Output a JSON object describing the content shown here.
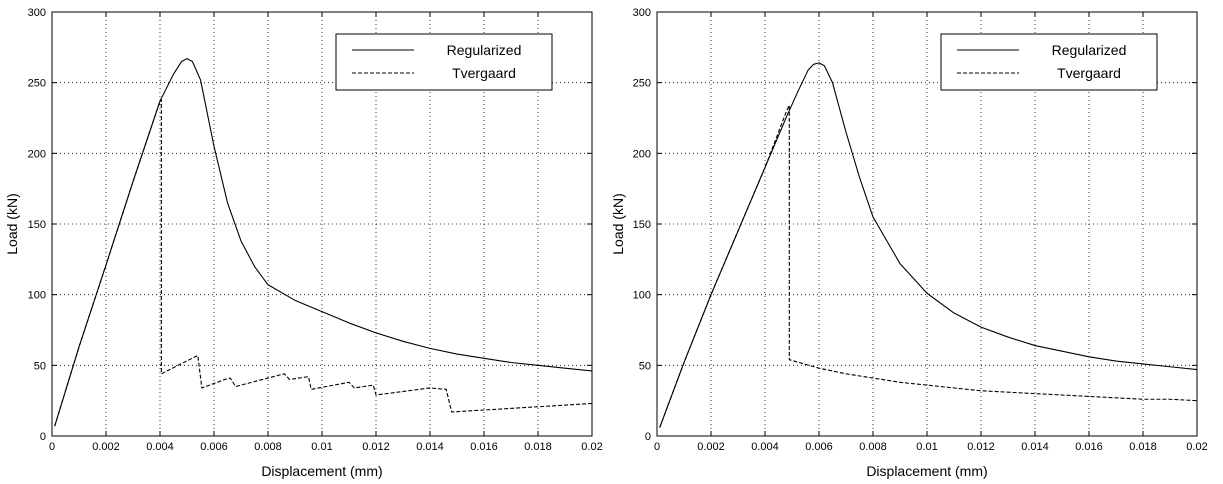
{
  "chart_data": [
    {
      "type": "line",
      "title": "",
      "xlabel": "Displacement (mm)",
      "ylabel": "Load (kN)",
      "xlim": [
        0,
        0.02
      ],
      "ylim": [
        0,
        300
      ],
      "grid": true,
      "legend_position": "top-right",
      "xticks": [
        "0",
        "0.002",
        "0.004",
        "0.006",
        "0.008",
        "0.01",
        "0.012",
        "0.014",
        "0.016",
        "0.018",
        "0.02"
      ],
      "yticks": [
        "0",
        "50",
        "100",
        "150",
        "200",
        "250",
        "300"
      ],
      "series": [
        {
          "name": "Regularized",
          "style": "solid",
          "x": [
            0.0001,
            0.001,
            0.002,
            0.003,
            0.004,
            0.0045,
            0.0048,
            0.005,
            0.0052,
            0.0055,
            0.006,
            0.0065,
            0.007,
            0.0075,
            0.008,
            0.009,
            0.01,
            0.011,
            0.012,
            0.013,
            0.014,
            0.015,
            0.016,
            0.017,
            0.018,
            0.019,
            0.02
          ],
          "y": [
            7,
            63,
            121,
            180,
            237,
            256,
            265,
            267,
            265,
            252,
            205,
            165,
            138,
            120,
            107,
            96,
            88,
            80,
            73,
            67,
            62,
            58,
            55,
            52,
            50,
            48,
            46
          ]
        },
        {
          "name": "Tvergaard",
          "style": "dashed",
          "x": [
            0.0001,
            0.001,
            0.002,
            0.003,
            0.004,
            0.00405,
            0.00405,
            0.0054,
            0.00555,
            0.0064,
            0.0066,
            0.0068,
            0.0086,
            0.0088,
            0.0095,
            0.0096,
            0.011,
            0.0112,
            0.0119,
            0.012,
            0.014,
            0.0146,
            0.0148,
            0.02
          ],
          "y": [
            7,
            63,
            121,
            180,
            237,
            238,
            44,
            57,
            34,
            40,
            41,
            35,
            44,
            40,
            42,
            33,
            38,
            34,
            36,
            29,
            34,
            33,
            17,
            23
          ]
        }
      ]
    },
    {
      "type": "line",
      "title": "",
      "xlabel": "Displacement (mm)",
      "ylabel": "Load (kN)",
      "xlim": [
        0,
        0.02
      ],
      "ylim": [
        0,
        300
      ],
      "grid": true,
      "legend_position": "top-right",
      "xticks": [
        "0",
        "0.002",
        "0.004",
        "0.006",
        "0.008",
        "0.01",
        "0.012",
        "0.014",
        "0.016",
        "0.018",
        "0.02"
      ],
      "yticks": [
        "0",
        "50",
        "100",
        "150",
        "200",
        "250",
        "300"
      ],
      "series": [
        {
          "name": "Regularized",
          "style": "solid",
          "x": [
            0.0001,
            0.001,
            0.002,
            0.003,
            0.004,
            0.0048,
            0.0052,
            0.0056,
            0.0058,
            0.006,
            0.0062,
            0.0065,
            0.007,
            0.0075,
            0.008,
            0.009,
            0.01,
            0.011,
            0.012,
            0.013,
            0.014,
            0.015,
            0.016,
            0.017,
            0.018,
            0.019,
            0.02
          ],
          "y": [
            6,
            52,
            100,
            145,
            190,
            226,
            243,
            259,
            263,
            264,
            262,
            250,
            215,
            183,
            155,
            122,
            101,
            87,
            77,
            70,
            64,
            60,
            56,
            53,
            51,
            49,
            47
          ]
        },
        {
          "name": "Tvergaard",
          "style": "dashed",
          "x": [
            0.0001,
            0.001,
            0.002,
            0.003,
            0.004,
            0.0048,
            0.0049,
            0.0049,
            0.006,
            0.007,
            0.008,
            0.009,
            0.01,
            0.011,
            0.012,
            0.013,
            0.014,
            0.015,
            0.016,
            0.017,
            0.018,
            0.019,
            0.02
          ],
          "y": [
            6,
            52,
            100,
            145,
            190,
            230,
            234,
            54,
            48,
            44,
            41,
            38,
            36,
            34,
            32,
            31,
            30,
            29,
            28,
            27,
            26,
            26,
            25
          ]
        }
      ]
    }
  ]
}
